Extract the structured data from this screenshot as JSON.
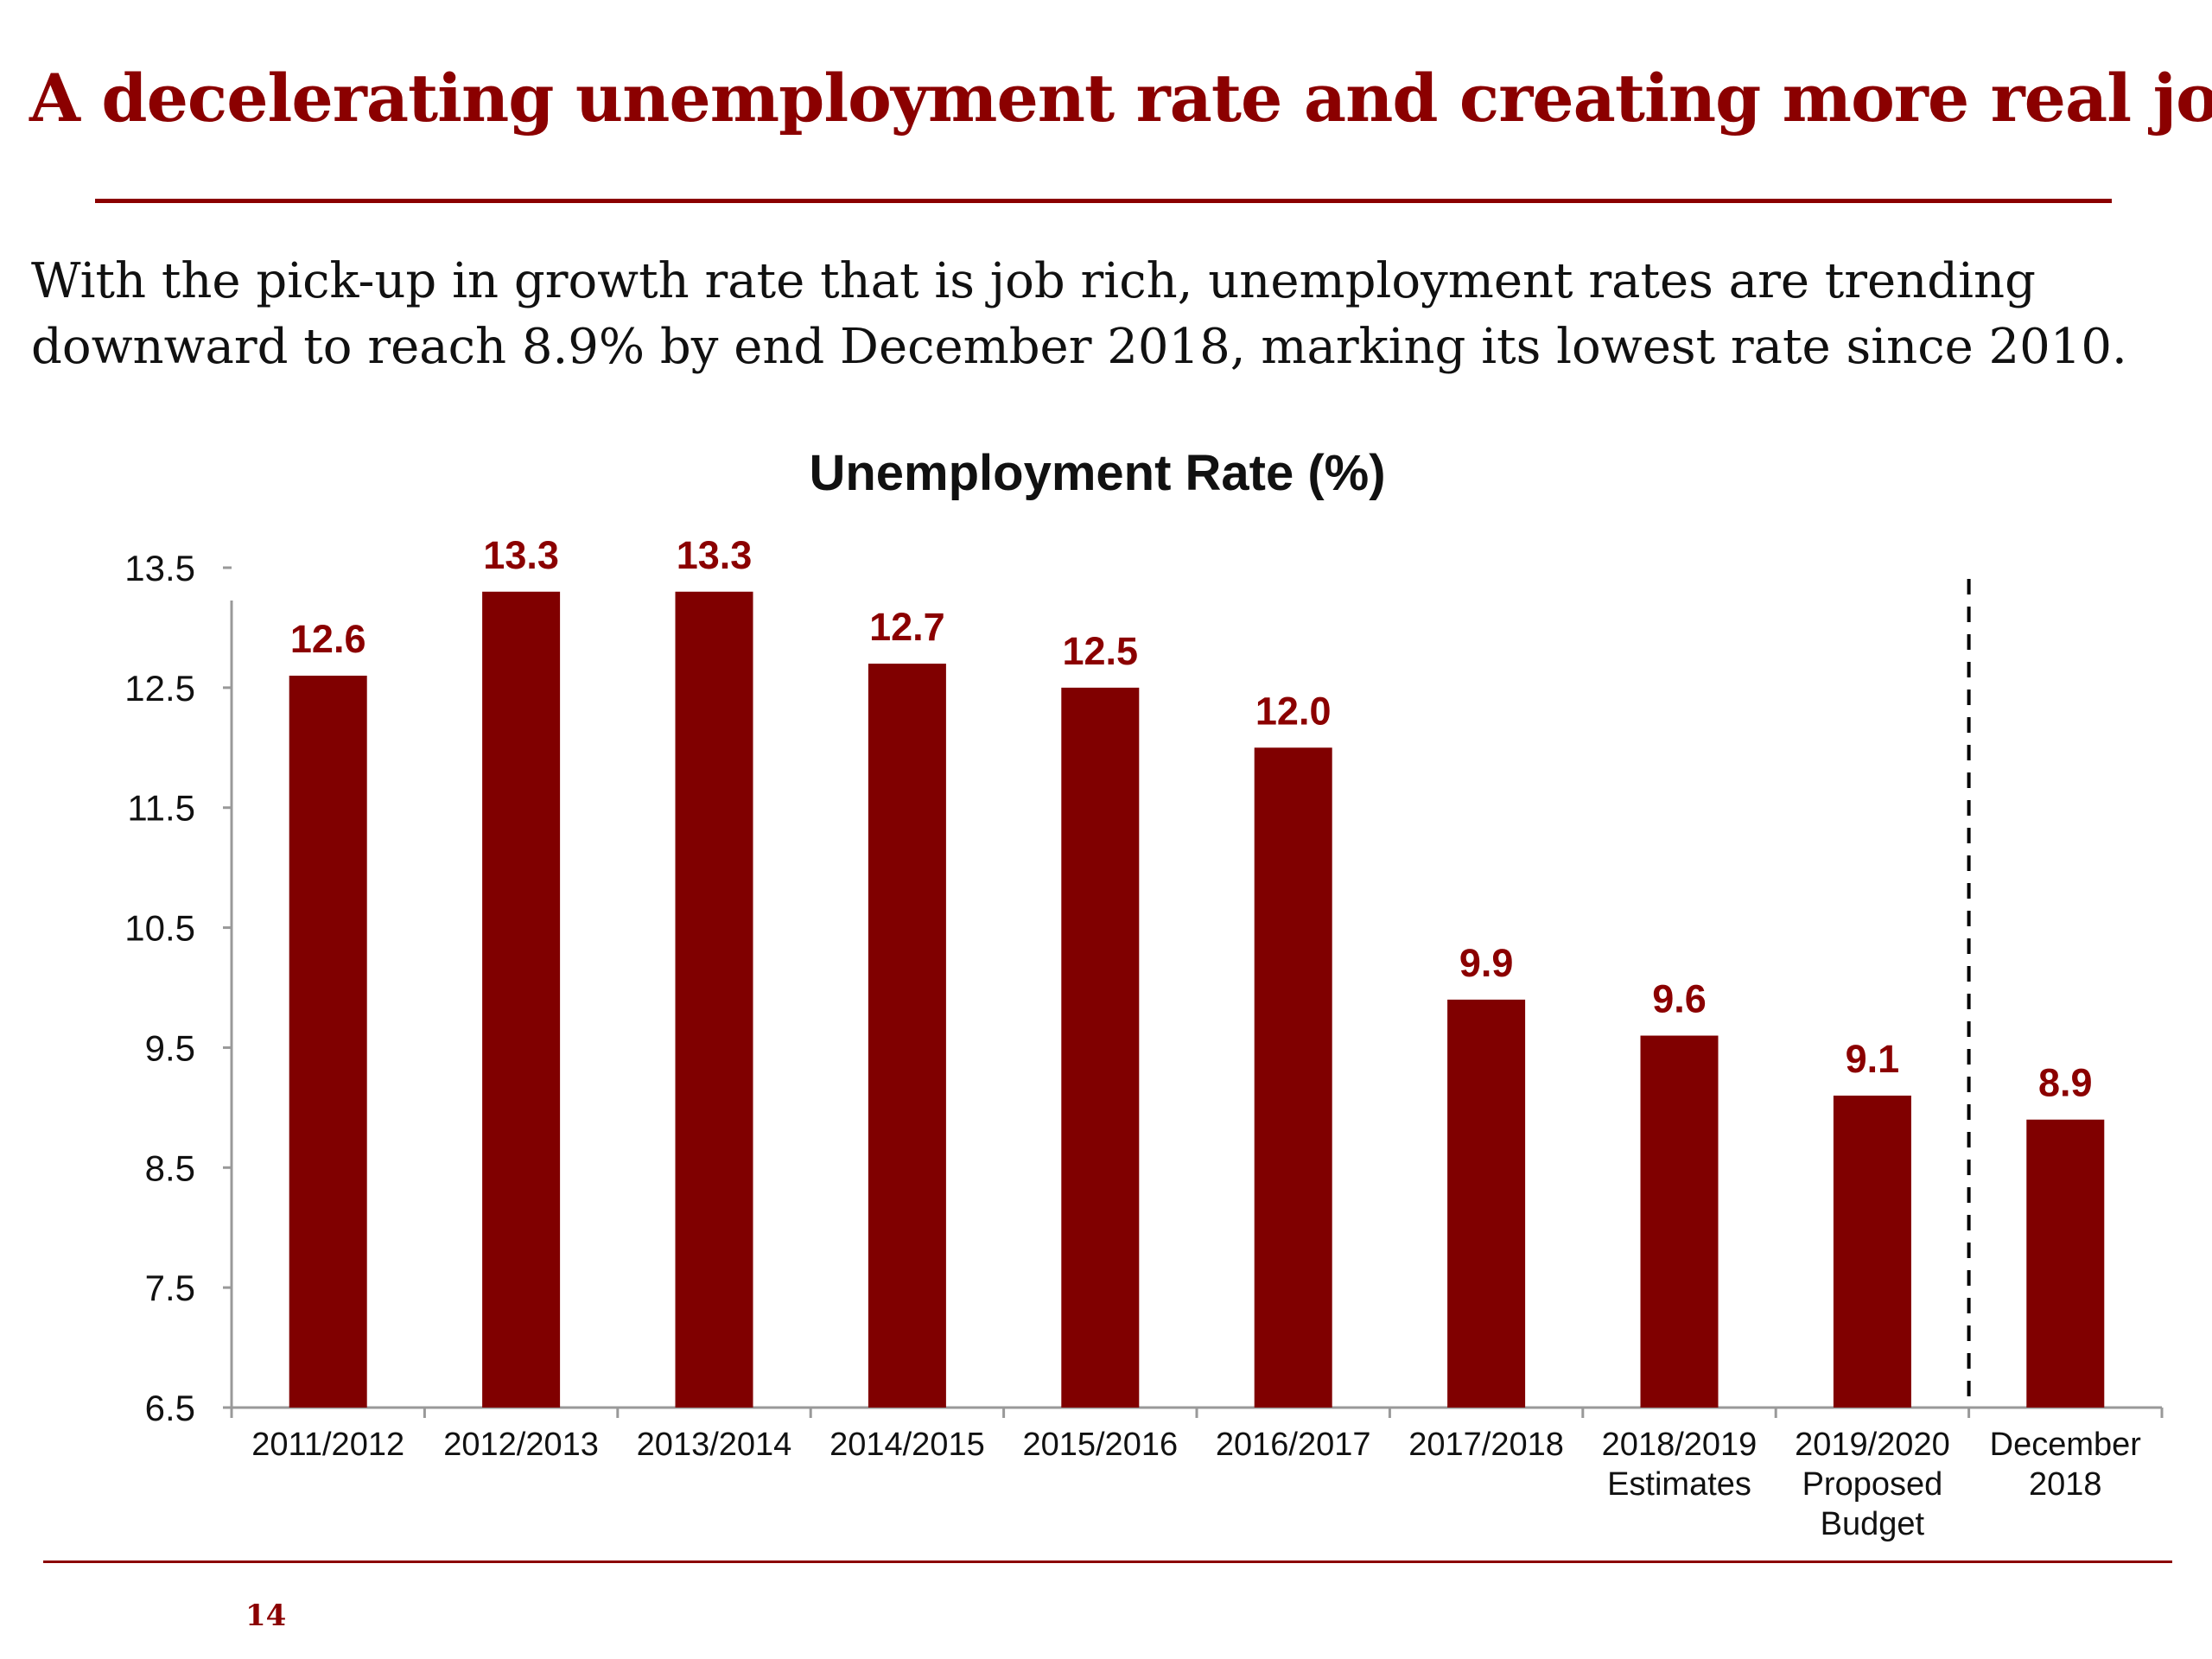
{
  "page": {
    "title": "A decelerating unemployment rate and creating more real jobs",
    "subtitle_lines": [
      "With the pick-up in growth rate that is job rich, unemployment rates are trending",
      "downward to reach 8.9%  by end December 2018, marking its lowest rate since 2010."
    ],
    "page_number": "14"
  },
  "colors": {
    "accent": "#8b0000",
    "bar": "#800000",
    "axis": "#999999",
    "text": "#111111"
  },
  "chart_data": {
    "type": "bar",
    "title": "Unemployment Rate (%)",
    "xlabel": "",
    "ylabel": "",
    "ylim": [
      6.5,
      13.5
    ],
    "yticks": [
      "13.5",
      "12.5",
      "11.5",
      "10.5",
      "9.5",
      "8.5",
      "7.5",
      "6.5"
    ],
    "categories": [
      [
        "2011/2012"
      ],
      [
        "2012/2013"
      ],
      [
        "2013/2014"
      ],
      [
        "2014/2015"
      ],
      [
        "2015/2016"
      ],
      [
        "2016/2017"
      ],
      [
        "2017/2018"
      ],
      [
        "2018/2019",
        "Estimates"
      ],
      [
        "2019/2020",
        "Proposed",
        "Budget"
      ],
      [
        "December",
        "2018"
      ]
    ],
    "values": [
      12.6,
      13.3,
      13.3,
      12.7,
      12.5,
      12.0,
      9.9,
      9.6,
      9.1,
      8.9
    ],
    "data_labels": [
      "12.6",
      "13.3",
      "13.3",
      "12.7",
      "12.5",
      "12.0",
      "9.9",
      "9.6",
      "9.1",
      "8.9"
    ],
    "grid": false,
    "legend": "none",
    "separator_before_category": 9
  }
}
